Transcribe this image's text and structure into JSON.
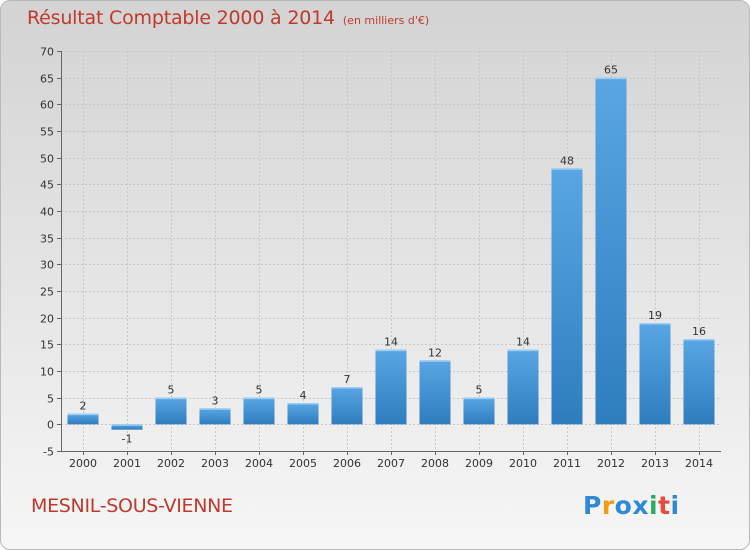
{
  "title": "Résultat Comptable 2000 à 2014",
  "unit_note": "(en milliers d'€)",
  "commune": "MESNIL-SOUS-VIENNE",
  "logo": {
    "letters": [
      "P",
      "r",
      "o",
      "x",
      "i",
      "t",
      "i"
    ],
    "colors": [
      "#2f89d6",
      "#f39c12",
      "#2f89d6",
      "#2f89d6",
      "#27ae60",
      "#e74c3c",
      "#2f89d6"
    ]
  },
  "colors": {
    "bar_top": "#5aa6e4",
    "bar_bottom": "#2e7dbf",
    "title": "#c0392b"
  },
  "chart_data": {
    "type": "bar",
    "categories": [
      "2000",
      "2001",
      "2002",
      "2003",
      "2004",
      "2005",
      "2006",
      "2007",
      "2008",
      "2009",
      "2010",
      "2011",
      "2012",
      "2013",
      "2014"
    ],
    "values": [
      2,
      -1,
      5,
      3,
      5,
      4,
      7,
      14,
      12,
      5,
      14,
      48,
      65,
      19,
      16
    ],
    "ylim": [
      -5,
      70
    ],
    "yticks": [
      -5,
      0,
      5,
      10,
      15,
      20,
      25,
      30,
      35,
      40,
      45,
      50,
      55,
      60,
      65,
      70
    ],
    "grid": true
  }
}
